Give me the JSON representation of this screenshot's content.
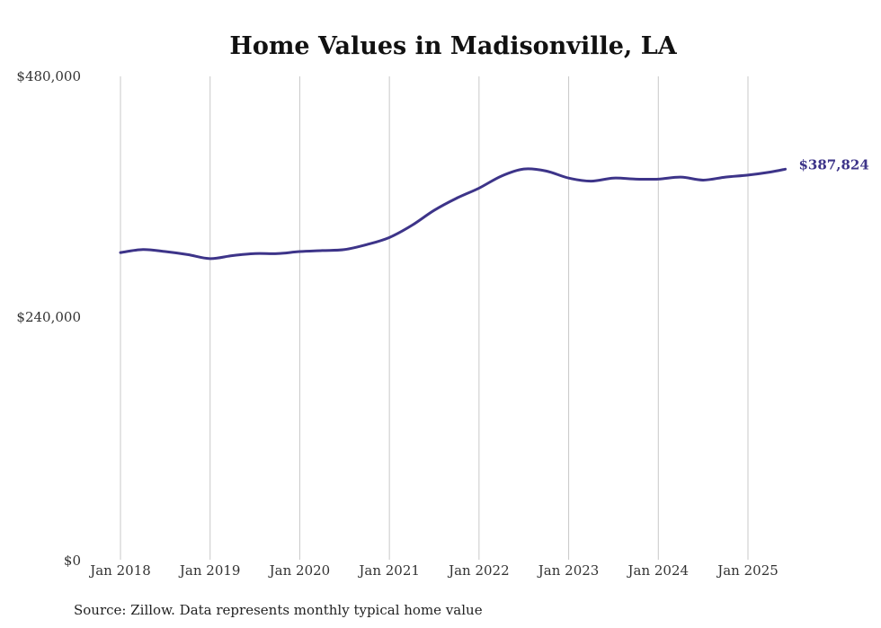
{
  "chart_data": {
    "type": "line",
    "title": "Home Values in Madisonville, LA",
    "xlabel": "",
    "ylabel": "",
    "x_tick_labels": [
      "Jan 2018",
      "Jan 2019",
      "Jan 2020",
      "Jan 2021",
      "Jan 2022",
      "Jan 2023",
      "Jan 2024",
      "Jan 2025"
    ],
    "y_tick_labels": [
      "$0",
      "$240,000",
      "$480,000"
    ],
    "y_ticks": [
      0,
      240000,
      480000
    ],
    "ylim": [
      0,
      480000
    ],
    "xlim": [
      "2018-01",
      "2025-06"
    ],
    "grid": "vertical lines at January of each year",
    "series": [
      {
        "color": "#3d3489",
        "x": [
          "2018-01",
          "2018-04",
          "2018-07",
          "2018-10",
          "2019-01",
          "2019-04",
          "2019-07",
          "2019-10",
          "2020-01",
          "2020-04",
          "2020-07",
          "2020-10",
          "2021-01",
          "2021-04",
          "2021-07",
          "2021-10",
          "2022-01",
          "2022-04",
          "2022-07",
          "2022-10",
          "2023-01",
          "2023-04",
          "2023-07",
          "2023-10",
          "2024-01",
          "2024-04",
          "2024-07",
          "2024-10",
          "2025-01",
          "2025-04",
          "2025-06"
        ],
        "values": [
          305000,
          308000,
          306000,
          303000,
          299000,
          302000,
          304000,
          304000,
          306000,
          307000,
          308000,
          313000,
          320000,
          332000,
          347000,
          359000,
          369000,
          381000,
          388000,
          386000,
          379000,
          376000,
          379000,
          378000,
          378000,
          380000,
          377000,
          380000,
          382000,
          385000,
          387824
        ]
      }
    ],
    "end_label": "$387,824"
  },
  "source_note": "Source: Zillow. Data represents monthly typical home value",
  "colors": {
    "line": "#3d3489",
    "grid": "#c8c8c8",
    "text": "#333333"
  }
}
